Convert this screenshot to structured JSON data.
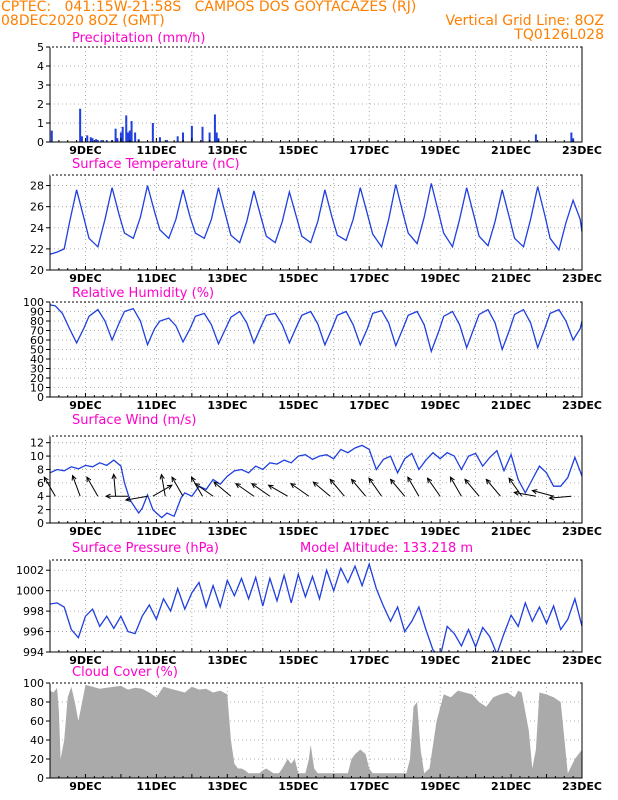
{
  "header": {
    "line1": "CPTEC:   041:15W-21:58S   CAMPOS DOS GOYTACAZES (RJ)",
    "line2_left": "08DEC2020 8OZ (GMT)",
    "line2_right": "Vertical Grid Line: 8OZ",
    "line3_right": "TQ0126L028"
  },
  "colors": {
    "header": "#ff7f00",
    "title": "#ff00cc",
    "series": "#1f3fdf",
    "cloud": "#aaaaaa",
    "grid": "#999999"
  },
  "x_ticks": [
    "9DEC",
    "11DEC",
    "13DEC",
    "15DEC",
    "17DEC",
    "19DEC",
    "21DEC",
    "23DEC"
  ],
  "x_range_days": [
    8.0,
    23.0
  ],
  "chart_data": [
    {
      "type": "bar",
      "title": "Precipitation (mm/h)",
      "ylim": [
        0,
        5
      ],
      "yticks": [
        0,
        1,
        2,
        3,
        4,
        5
      ],
      "x": [
        8.05,
        8.85,
        8.9,
        9.05,
        9.15,
        9.2,
        9.3,
        9.35,
        9.45,
        9.6,
        9.75,
        9.85,
        9.9,
        10.0,
        10.05,
        10.15,
        10.2,
        10.25,
        10.3,
        10.4,
        10.5,
        10.9,
        11.1,
        11.3,
        11.6,
        11.75,
        12.0,
        12.3,
        12.5,
        12.65,
        12.7,
        12.75,
        21.7,
        22.7,
        22.75
      ],
      "values": [
        0.6,
        1.75,
        0.3,
        0.35,
        0.25,
        0.2,
        0.15,
        0.1,
        0.1,
        0.1,
        0.1,
        0.7,
        0.2,
        0.5,
        0.8,
        1.4,
        0.5,
        0.6,
        1.1,
        0.5,
        0.15,
        1.0,
        0.25,
        0.1,
        0.3,
        0.5,
        0.85,
        0.8,
        0.5,
        1.45,
        0.5,
        0.2,
        0.4,
        0.5,
        0.2
      ]
    },
    {
      "type": "line",
      "title": "Surface Temperature (nC)",
      "ylim": [
        20,
        29
      ],
      "yticks": [
        20,
        22,
        24,
        26,
        28
      ],
      "x": [
        8.0,
        8.2,
        8.4,
        8.55,
        8.75,
        8.95,
        9.1,
        9.35,
        9.55,
        9.75,
        9.95,
        10.1,
        10.35,
        10.55,
        10.75,
        10.95,
        11.1,
        11.35,
        11.55,
        11.75,
        11.95,
        12.1,
        12.35,
        12.55,
        12.75,
        12.95,
        13.1,
        13.35,
        13.55,
        13.75,
        13.95,
        14.1,
        14.35,
        14.55,
        14.75,
        14.95,
        15.1,
        15.35,
        15.55,
        15.75,
        15.95,
        16.1,
        16.35,
        16.55,
        16.75,
        16.95,
        17.1,
        17.35,
        17.55,
        17.75,
        17.95,
        18.1,
        18.35,
        18.55,
        18.75,
        18.95,
        19.1,
        19.35,
        19.55,
        19.75,
        19.95,
        20.1,
        20.35,
        20.55,
        20.75,
        20.95,
        21.1,
        21.35,
        21.55,
        21.75,
        21.95,
        22.1,
        22.35,
        22.55,
        22.75,
        22.95,
        23.0
      ],
      "values": [
        21.5,
        21.7,
        22.0,
        24.5,
        27.6,
        25.0,
        23.0,
        22.2,
        24.8,
        27.8,
        25.2,
        23.5,
        23.0,
        25.0,
        28.0,
        25.5,
        23.8,
        23.0,
        24.8,
        27.6,
        25.0,
        23.5,
        23.0,
        24.8,
        27.8,
        25.2,
        23.3,
        22.6,
        24.6,
        27.5,
        25.0,
        23.2,
        22.6,
        24.6,
        27.4,
        25.0,
        23.2,
        22.6,
        24.6,
        27.6,
        25.0,
        23.3,
        22.8,
        24.8,
        27.8,
        25.3,
        23.4,
        22.2,
        24.8,
        28.1,
        25.4,
        23.5,
        22.5,
        25.0,
        28.2,
        25.5,
        23.5,
        22.2,
        24.8,
        27.8,
        25.2,
        23.2,
        22.3,
        24.6,
        27.6,
        25.0,
        23.0,
        22.2,
        24.8,
        27.9,
        25.2,
        23.0,
        21.9,
        24.5,
        26.6,
        24.8,
        23.6
      ]
    },
    {
      "type": "line",
      "title": "Relative Humidity (%)",
      "ylim": [
        0,
        100
      ],
      "yticks": [
        0,
        10,
        20,
        30,
        40,
        50,
        60,
        70,
        80,
        90,
        100
      ],
      "x": [
        8.0,
        8.15,
        8.35,
        8.55,
        8.75,
        8.95,
        9.1,
        9.35,
        9.55,
        9.75,
        9.95,
        10.1,
        10.35,
        10.55,
        10.75,
        10.95,
        11.1,
        11.35,
        11.55,
        11.75,
        11.95,
        12.1,
        12.35,
        12.55,
        12.75,
        12.95,
        13.1,
        13.35,
        13.55,
        13.75,
        13.95,
        14.1,
        14.35,
        14.55,
        14.75,
        14.95,
        15.1,
        15.35,
        15.55,
        15.75,
        15.95,
        16.1,
        16.35,
        16.55,
        16.75,
        16.95,
        17.1,
        17.35,
        17.55,
        17.75,
        17.95,
        18.1,
        18.35,
        18.55,
        18.75,
        18.95,
        19.1,
        19.35,
        19.55,
        19.75,
        19.95,
        20.1,
        20.35,
        20.55,
        20.75,
        20.95,
        21.1,
        21.35,
        21.55,
        21.75,
        21.95,
        22.1,
        22.35,
        22.55,
        22.75,
        22.95,
        23.0
      ],
      "values": [
        97,
        96,
        88,
        72,
        57,
        72,
        85,
        92,
        80,
        60,
        78,
        90,
        93,
        80,
        55,
        72,
        80,
        83,
        75,
        58,
        72,
        85,
        88,
        76,
        56,
        72,
        84,
        90,
        78,
        57,
        74,
        86,
        88,
        76,
        57,
        74,
        86,
        90,
        77,
        55,
        72,
        86,
        90,
        76,
        55,
        72,
        88,
        91,
        78,
        54,
        72,
        86,
        90,
        76,
        48,
        68,
        85,
        90,
        76,
        52,
        72,
        87,
        92,
        78,
        50,
        70,
        87,
        92,
        78,
        52,
        72,
        88,
        92,
        80,
        60,
        72,
        80
      ]
    },
    {
      "type": "line",
      "title": "Surface Wind (m/s)",
      "ylim": [
        0,
        13
      ],
      "yticks": [
        0,
        2,
        4,
        6,
        8,
        10,
        12
      ],
      "x": [
        8.0,
        8.2,
        8.4,
        8.6,
        8.8,
        9.0,
        9.2,
        9.4,
        9.6,
        9.8,
        10.0,
        10.1,
        10.25,
        10.5,
        10.6,
        10.75,
        10.9,
        11.0,
        11.15,
        11.3,
        11.5,
        11.7,
        11.8,
        12.0,
        12.2,
        12.4,
        12.6,
        12.8,
        13.0,
        13.2,
        13.4,
        13.6,
        13.8,
        14.0,
        14.2,
        14.4,
        14.6,
        14.8,
        15.0,
        15.2,
        15.4,
        15.6,
        15.8,
        16.0,
        16.2,
        16.4,
        16.6,
        16.8,
        17.0,
        17.2,
        17.4,
        17.6,
        17.8,
        18.0,
        18.2,
        18.4,
        18.6,
        18.8,
        19.0,
        19.2,
        19.4,
        19.6,
        19.8,
        20.0,
        20.2,
        20.4,
        20.6,
        20.8,
        21.0,
        21.2,
        21.4,
        21.6,
        21.8,
        22.0,
        22.2,
        22.4,
        22.6,
        22.8,
        23.0
      ],
      "values": [
        7.5,
        8.0,
        7.8,
        8.4,
        8.1,
        8.6,
        8.4,
        9.0,
        8.6,
        9.4,
        8.5,
        6.0,
        3.5,
        1.5,
        2.2,
        4.2,
        2.0,
        1.5,
        0.8,
        1.5,
        1.0,
        3.8,
        4.5,
        4.0,
        5.5,
        5.0,
        6.5,
        5.8,
        7.0,
        7.8,
        8.0,
        7.5,
        8.5,
        8.0,
        9.0,
        8.8,
        9.4,
        9.0,
        10.0,
        10.2,
        9.5,
        10.0,
        10.2,
        9.6,
        11.0,
        10.5,
        11.2,
        11.6,
        11.0,
        8.0,
        9.5,
        10.0,
        7.5,
        9.6,
        10.4,
        8.0,
        9.4,
        10.5,
        9.6,
        10.5,
        10.0,
        8.0,
        10.0,
        10.4,
        8.5,
        9.8,
        10.8,
        7.8,
        10.2,
        6.5,
        4.5,
        6.5,
        8.5,
        7.5,
        5.5,
        5.5,
        6.8,
        9.8,
        7.0
      ],
      "arrows": [
        {
          "x": 8.15,
          "angle": 240
        },
        {
          "x": 8.85,
          "angle": 250
        },
        {
          "x": 9.35,
          "angle": 240
        },
        {
          "x": 9.85,
          "angle": 265
        },
        {
          "x": 10.2,
          "angle": 180
        },
        {
          "x": 10.75,
          "angle": 170
        },
        {
          "x": 10.9,
          "angle": 330
        },
        {
          "x": 11.25,
          "angle": 260
        },
        {
          "x": 11.75,
          "angle": 240
        },
        {
          "x": 12.3,
          "angle": 240
        },
        {
          "x": 12.6,
          "angle": 215
        },
        {
          "x": 13.1,
          "angle": 220
        },
        {
          "x": 13.75,
          "angle": 215
        },
        {
          "x": 14.2,
          "angle": 215
        },
        {
          "x": 14.7,
          "angle": 210
        },
        {
          "x": 15.3,
          "angle": 215
        },
        {
          "x": 15.9,
          "angle": 220
        },
        {
          "x": 16.3,
          "angle": 230
        },
        {
          "x": 16.9,
          "angle": 230
        },
        {
          "x": 17.35,
          "angle": 235
        },
        {
          "x": 18.0,
          "angle": 230
        },
        {
          "x": 18.4,
          "angle": 240
        },
        {
          "x": 19.0,
          "angle": 235
        },
        {
          "x": 19.6,
          "angle": 240
        },
        {
          "x": 20.1,
          "angle": 230
        },
        {
          "x": 20.7,
          "angle": 230
        },
        {
          "x": 21.3,
          "angle": 235
        },
        {
          "x": 21.7,
          "angle": 190
        },
        {
          "x": 22.2,
          "angle": 195
        },
        {
          "x": 22.7,
          "angle": 175
        }
      ]
    },
    {
      "type": "line",
      "title": "Surface Pressure (hPa)",
      "annotation": "Model Altitude: 133.218 m",
      "ylim": [
        994,
        1003
      ],
      "yticks": [
        994,
        996,
        998,
        1000,
        1002
      ],
      "x": [
        8.0,
        8.2,
        8.4,
        8.6,
        8.8,
        9.0,
        9.2,
        9.4,
        9.6,
        9.8,
        10.0,
        10.2,
        10.4,
        10.6,
        10.8,
        11.0,
        11.2,
        11.4,
        11.6,
        11.8,
        12.0,
        12.2,
        12.4,
        12.6,
        12.8,
        13.0,
        13.2,
        13.4,
        13.6,
        13.8,
        14.0,
        14.2,
        14.4,
        14.6,
        14.8,
        15.0,
        15.2,
        15.4,
        15.6,
        15.8,
        16.0,
        16.2,
        16.4,
        16.6,
        16.8,
        17.0,
        17.2,
        17.4,
        17.6,
        17.8,
        18.0,
        18.2,
        18.4,
        18.6,
        18.8,
        19.0,
        19.2,
        19.4,
        19.6,
        19.8,
        20.0,
        20.2,
        20.4,
        20.6,
        20.8,
        21.0,
        21.2,
        21.4,
        21.6,
        21.8,
        22.0,
        22.2,
        22.4,
        22.6,
        22.8,
        23.0
      ],
      "values": [
        998.7,
        998.8,
        998.4,
        996.2,
        995.4,
        997.5,
        998.2,
        996.5,
        997.5,
        996.3,
        997.5,
        996.0,
        995.8,
        997.5,
        998.6,
        997.2,
        999.2,
        998.0,
        1000.2,
        998.2,
        999.8,
        1000.8,
        998.4,
        1000.5,
        998.4,
        1001.0,
        999.5,
        1001.2,
        999.2,
        1001.3,
        998.5,
        1001.2,
        999.0,
        1001.5,
        998.8,
        1001.6,
        999.4,
        1001.4,
        999.2,
        1002.0,
        1000.0,
        1002.2,
        1000.8,
        1002.4,
        1000.5,
        1002.6,
        1000.2,
        998.5,
        997.0,
        998.4,
        996.0,
        997.0,
        998.4,
        996.2,
        994.2,
        993.5,
        996.5,
        995.8,
        994.6,
        996.2,
        994.5,
        996.4,
        995.5,
        993.8,
        995.8,
        997.6,
        996.5,
        998.8,
        997.0,
        998.4,
        996.8,
        998.5,
        996.2,
        997.2,
        999.2,
        996.5
      ]
    },
    {
      "type": "area",
      "title": "Cloud Cover (%)",
      "ylim": [
        0,
        100
      ],
      "yticks": [
        0,
        20,
        40,
        60,
        80,
        100
      ],
      "x": [
        8.0,
        8.1,
        8.2,
        8.25,
        8.3,
        8.4,
        8.5,
        8.6,
        8.7,
        8.8,
        9.0,
        9.2,
        9.4,
        9.6,
        9.8,
        10.0,
        10.2,
        10.4,
        10.6,
        10.8,
        11.0,
        11.2,
        11.4,
        11.6,
        11.8,
        12.0,
        12.2,
        12.4,
        12.6,
        12.8,
        13.0,
        13.1,
        13.2,
        13.3,
        13.4,
        13.5,
        13.6,
        13.75,
        13.9,
        14.0,
        14.1,
        14.3,
        14.4,
        14.45,
        14.55,
        14.7,
        14.8,
        14.9,
        15.0,
        15.1,
        15.2,
        15.3,
        15.35,
        15.45,
        15.55,
        15.7,
        15.85,
        16.0,
        16.2,
        16.4,
        16.5,
        16.6,
        16.75,
        16.9,
        17.0,
        17.1,
        17.2,
        17.3,
        17.4,
        17.5,
        17.6,
        17.7,
        17.8,
        17.9,
        18.0,
        18.05,
        18.15,
        18.25,
        18.35,
        18.45,
        18.55,
        18.7,
        18.9,
        19.1,
        19.3,
        19.5,
        19.7,
        19.9,
        20.1,
        20.3,
        20.5,
        20.7,
        20.9,
        21.1,
        21.2,
        21.3,
        21.5,
        21.6,
        21.7,
        21.8,
        22.0,
        22.2,
        22.4,
        22.6,
        22.8,
        23.0
      ],
      "values": [
        92,
        90,
        95,
        70,
        20,
        40,
        85,
        96,
        80,
        60,
        98,
        96,
        94,
        95,
        96,
        97,
        93,
        95,
        94,
        90,
        85,
        96,
        94,
        92,
        90,
        96,
        93,
        94,
        90,
        92,
        88,
        40,
        15,
        10,
        10,
        8,
        5,
        5,
        5,
        8,
        10,
        5,
        5,
        5,
        10,
        20,
        15,
        20,
        5,
        5,
        5,
        20,
        35,
        10,
        5,
        5,
        5,
        5,
        5,
        5,
        20,
        25,
        30,
        25,
        10,
        5,
        5,
        5,
        5,
        5,
        5,
        5,
        5,
        5,
        5,
        5,
        20,
        75,
        80,
        30,
        5,
        10,
        60,
        88,
        85,
        92,
        90,
        88,
        80,
        75,
        85,
        88,
        90,
        85,
        92,
        90,
        50,
        10,
        30,
        90,
        88,
        85,
        80,
        5,
        20,
        30
      ]
    }
  ]
}
